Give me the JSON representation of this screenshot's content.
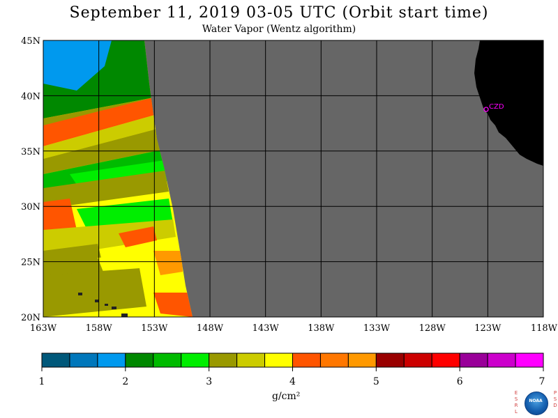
{
  "title": "September 11, 2019  03-05 UTC  (Orbit start time)",
  "subtitle": "Water Vapor (Wentz algorithm)",
  "lat_labels": [
    "45N",
    "40N",
    "35N",
    "30N",
    "25N",
    "20N"
  ],
  "lon_labels": [
    "163W",
    "158W",
    "153W",
    "148W",
    "143W",
    "138W",
    "133W",
    "128W",
    "123W",
    "118W"
  ],
  "station_label": "CZD",
  "colors": {
    "no_data": "#666666",
    "land": "#000000",
    "grid": "#000000",
    "station": "#ff00ff"
  },
  "colorbar": {
    "ticks": [
      "1",
      "2",
      "3",
      "4",
      "5",
      "6",
      "7"
    ],
    "units": "g/cm²",
    "colors": [
      "#00587a",
      "#0077bb",
      "#0099ee",
      "#008800",
      "#00bb00",
      "#00ee00",
      "#999900",
      "#cccc00",
      "#ffff00",
      "#ff5500",
      "#ff7700",
      "#ff9900",
      "#990000",
      "#cc0000",
      "#ff0000",
      "#990099",
      "#cc00cc",
      "#ff00ff"
    ]
  },
  "logo": {
    "left_letters": "ESRL",
    "right_letters": "PSD",
    "center": "NOAA"
  }
}
